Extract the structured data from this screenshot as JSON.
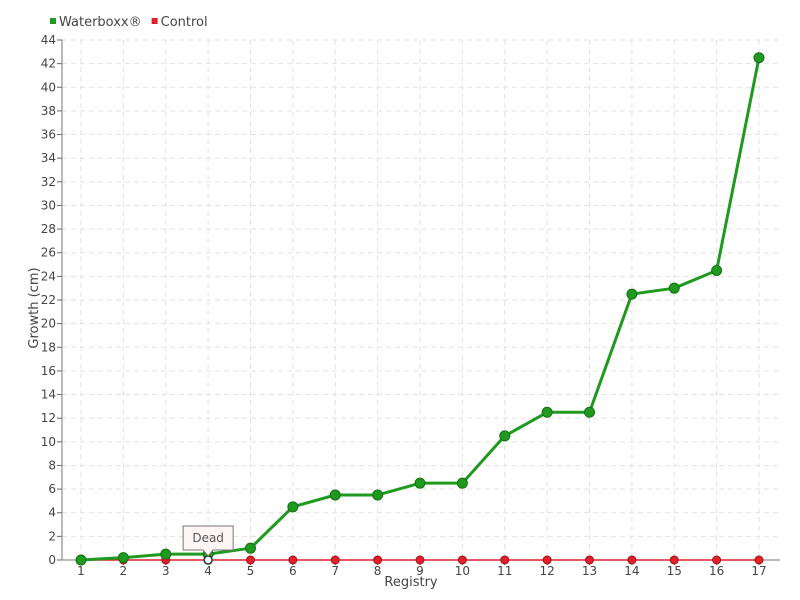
{
  "chart_data": {
    "type": "line",
    "title": "",
    "xlabel": "Registry",
    "ylabel": "Growth (cm)",
    "categories": [
      "1",
      "2",
      "3",
      "4",
      "5",
      "6",
      "7",
      "8",
      "9",
      "10",
      "11",
      "12",
      "13",
      "14",
      "15",
      "16",
      "17"
    ],
    "ylim": [
      0,
      44
    ],
    "yticks": [
      0,
      2,
      4,
      6,
      8,
      10,
      12,
      14,
      16,
      18,
      20,
      22,
      24,
      26,
      28,
      30,
      32,
      34,
      36,
      38,
      40,
      42,
      44
    ],
    "grid": true,
    "legend_position": "top-left",
    "series": [
      {
        "name": "Waterboxx®",
        "color": "#1f9a1f",
        "values": [
          0,
          0.2,
          0.5,
          0.5,
          1,
          4.5,
          5.5,
          5.5,
          6.5,
          6.5,
          10.5,
          12.5,
          12.5,
          22.5,
          23,
          24.5,
          42.5
        ]
      },
      {
        "name": "Control",
        "color": "#e0202a",
        "values": [
          0,
          0,
          0,
          0,
          0,
          0,
          0,
          0,
          0,
          0,
          0,
          0,
          0,
          0,
          0,
          0,
          0
        ]
      }
    ],
    "annotations": [
      {
        "text": "Dead",
        "series": "Control",
        "category": "4"
      }
    ]
  }
}
